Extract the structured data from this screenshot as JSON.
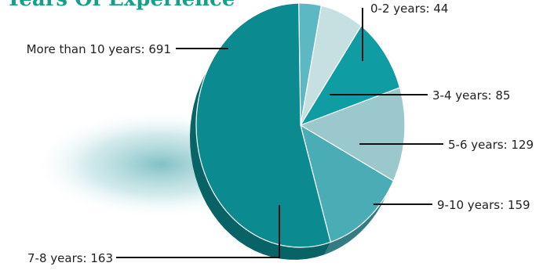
{
  "chart_data": {
    "type": "pie",
    "title": "Years Of Experience",
    "slices": [
      {
        "category": "0-2 years",
        "value": 44,
        "label": "0-2 years: 44",
        "color": "#5cb8c3"
      },
      {
        "category": "3-4 years",
        "value": 85,
        "label": "3-4 years: 85",
        "color": "#c6dfe0"
      },
      {
        "category": "5-6 years",
        "value": 129,
        "label": "5-6 years: 129",
        "color": "#0f9ca3"
      },
      {
        "category": "9-10 years",
        "value": 159,
        "label": "9-10 years: 159",
        "color": "#9bc8cc"
      },
      {
        "category": "7-8 years",
        "value": 163,
        "label": "7-8 years: 163",
        "color": "#4aacb4"
      },
      {
        "category": "More than 10 years",
        "value": 691,
        "label": "More than 10 years: 691",
        "color": "#0b8a8f"
      }
    ],
    "legend": "none"
  }
}
